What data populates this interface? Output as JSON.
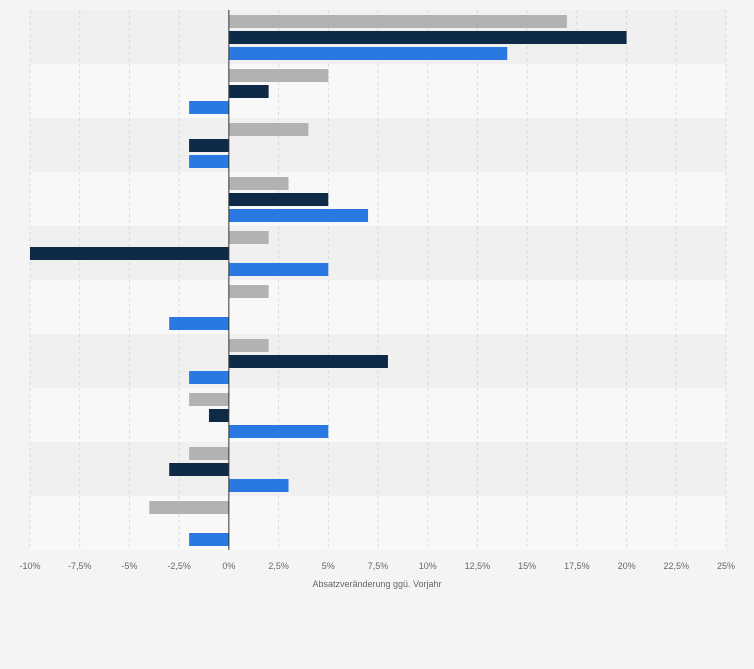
{
  "chart_data": {
    "type": "bar",
    "orientation": "horizontal",
    "title": "",
    "xlabel": "Absatzveränderung ggü. Vorjahr",
    "ylabel": "",
    "xlim": [
      -10,
      25
    ],
    "xticks": [
      -10,
      -7.5,
      -5,
      -2.5,
      0,
      2.5,
      5,
      7.5,
      10,
      12.5,
      15,
      17.5,
      20,
      22.5,
      25
    ],
    "xtick_labels": [
      "-10%",
      "-7,5%",
      "-5%",
      "-2,5%",
      "0%",
      "2,5%",
      "5%",
      "7,5%",
      "10%",
      "12,5%",
      "15%",
      "17,5%",
      "20%",
      "22,5%",
      "25%"
    ],
    "grid": true,
    "legend": "none",
    "categories": [
      "",
      "",
      "",
      "",
      "",
      "",
      "",
      "",
      "",
      ""
    ],
    "series": [
      {
        "color": "#b2b2b2",
        "values": [
          17,
          5,
          4,
          3,
          2,
          2,
          2,
          -2,
          -2,
          -4
        ]
      },
      {
        "color": "#0f2a47",
        "values": [
          20,
          2,
          -2,
          5,
          -10,
          0,
          8,
          -1,
          -3,
          0
        ]
      },
      {
        "color": "#2a79e2",
        "values": [
          14,
          -2,
          -2,
          7,
          5,
          -3,
          -2,
          5,
          3,
          -2
        ]
      }
    ]
  }
}
